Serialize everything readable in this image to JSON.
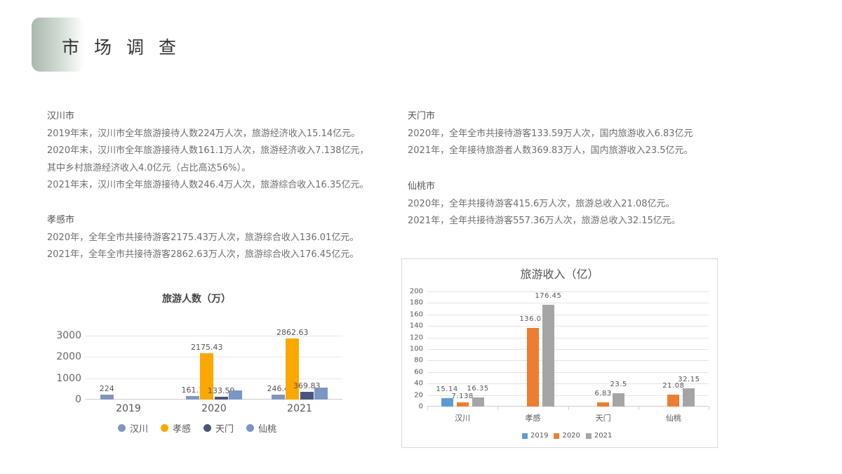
{
  "header": {
    "title": "市场调查"
  },
  "sections": {
    "hanchuan": {
      "city": "汉川市",
      "lines": [
        "2019年末，汉川市全年旅游接待人数224万人次，旅游经济收入15.14亿元。",
        "2020年末，汉川市全年旅游接待人数161.1万人次，旅游经济收入7.138亿元，",
        "其中乡村旅游经济收入4.0亿元（占比高达56%）。",
        "2021年末，汉川市全年旅游接待人数246.4万人次，旅游综合收入16.35亿元。"
      ]
    },
    "xiaogan": {
      "city": "孝感市",
      "lines": [
        "2020年，全年全市共接待游客2175.43万人次，旅游综合收入136.01亿元。",
        "2021年，全年全市共接待游客2862.63万人次，旅游综合收入176.45亿元。"
      ]
    },
    "tianmen": {
      "city": "天门市",
      "lines": [
        "2020年，全年全市共接待游客133.59万人次，国内旅游收入6.83亿元",
        "2021年，全年接待旅游者人数369.83万人，国内旅游收入23.5亿元。"
      ]
    },
    "xiantao": {
      "city": "仙桃市",
      "lines": [
        "2020年，全年共接待游客415.6万人次，旅游总收入21.08亿元。",
        "2021年，全年共接待游客557.36万人次，旅游总收入32.15亿元。"
      ]
    }
  },
  "chart_data": [
    {
      "type": "bar",
      "title": "旅游人数（万）",
      "categories": [
        "2019",
        "2020",
        "2021"
      ],
      "series": [
        {
          "name": "汉川",
          "color": "#7f97bd",
          "values": [
            224,
            161.1,
            246.4
          ],
          "labels": [
            "224",
            "161.1",
            "246.4"
          ]
        },
        {
          "name": "孝感",
          "color": "#fba800",
          "values": [
            null,
            2175.43,
            2862.63
          ],
          "labels": [
            "",
            "2175.43",
            "2862.63"
          ]
        },
        {
          "name": "天门",
          "color": "#4a5677",
          "values": [
            null,
            133.59,
            369.83
          ],
          "labels": [
            "",
            "133.59",
            "369.83"
          ]
        },
        {
          "name": "仙桃",
          "color": "#7a96c2",
          "values": [
            null,
            415.6,
            557.36
          ],
          "labels": [
            "",
            "",
            ""
          ]
        }
      ],
      "yticks": [
        "3000",
        "2000",
        "1000",
        "0"
      ],
      "ylim": [
        0,
        3000
      ],
      "grid": true,
      "legend_position": "bottom",
      "xlabel": "",
      "ylabel": ""
    },
    {
      "type": "bar",
      "title": "旅游收入（亿）",
      "categories": [
        "汉川",
        "孝感",
        "天门",
        "仙桃"
      ],
      "series": [
        {
          "name": "2019",
          "color": "#5b9bd5",
          "values": [
            15.14,
            null,
            null,
            null
          ],
          "labels": [
            "15.14",
            "",
            "",
            ""
          ]
        },
        {
          "name": "2020",
          "color": "#ed7d31",
          "values": [
            7.138,
            136.01,
            6.83,
            21.08
          ],
          "labels": [
            "7.138",
            "136.01",
            "6.83",
            "21.08"
          ]
        },
        {
          "name": "2021",
          "color": "#a5a5a5",
          "values": [
            16.35,
            176.45,
            23.5,
            32.15
          ],
          "labels": [
            "16.35",
            "176.45",
            "23.5",
            "32.15"
          ]
        }
      ],
      "yticks": [
        "200",
        "180",
        "160",
        "140",
        "120",
        "100",
        "80",
        "60",
        "40",
        "20",
        "0"
      ],
      "ylim": [
        0,
        200
      ],
      "grid": true,
      "legend_position": "bottom",
      "xlabel": "",
      "ylabel": ""
    }
  ]
}
